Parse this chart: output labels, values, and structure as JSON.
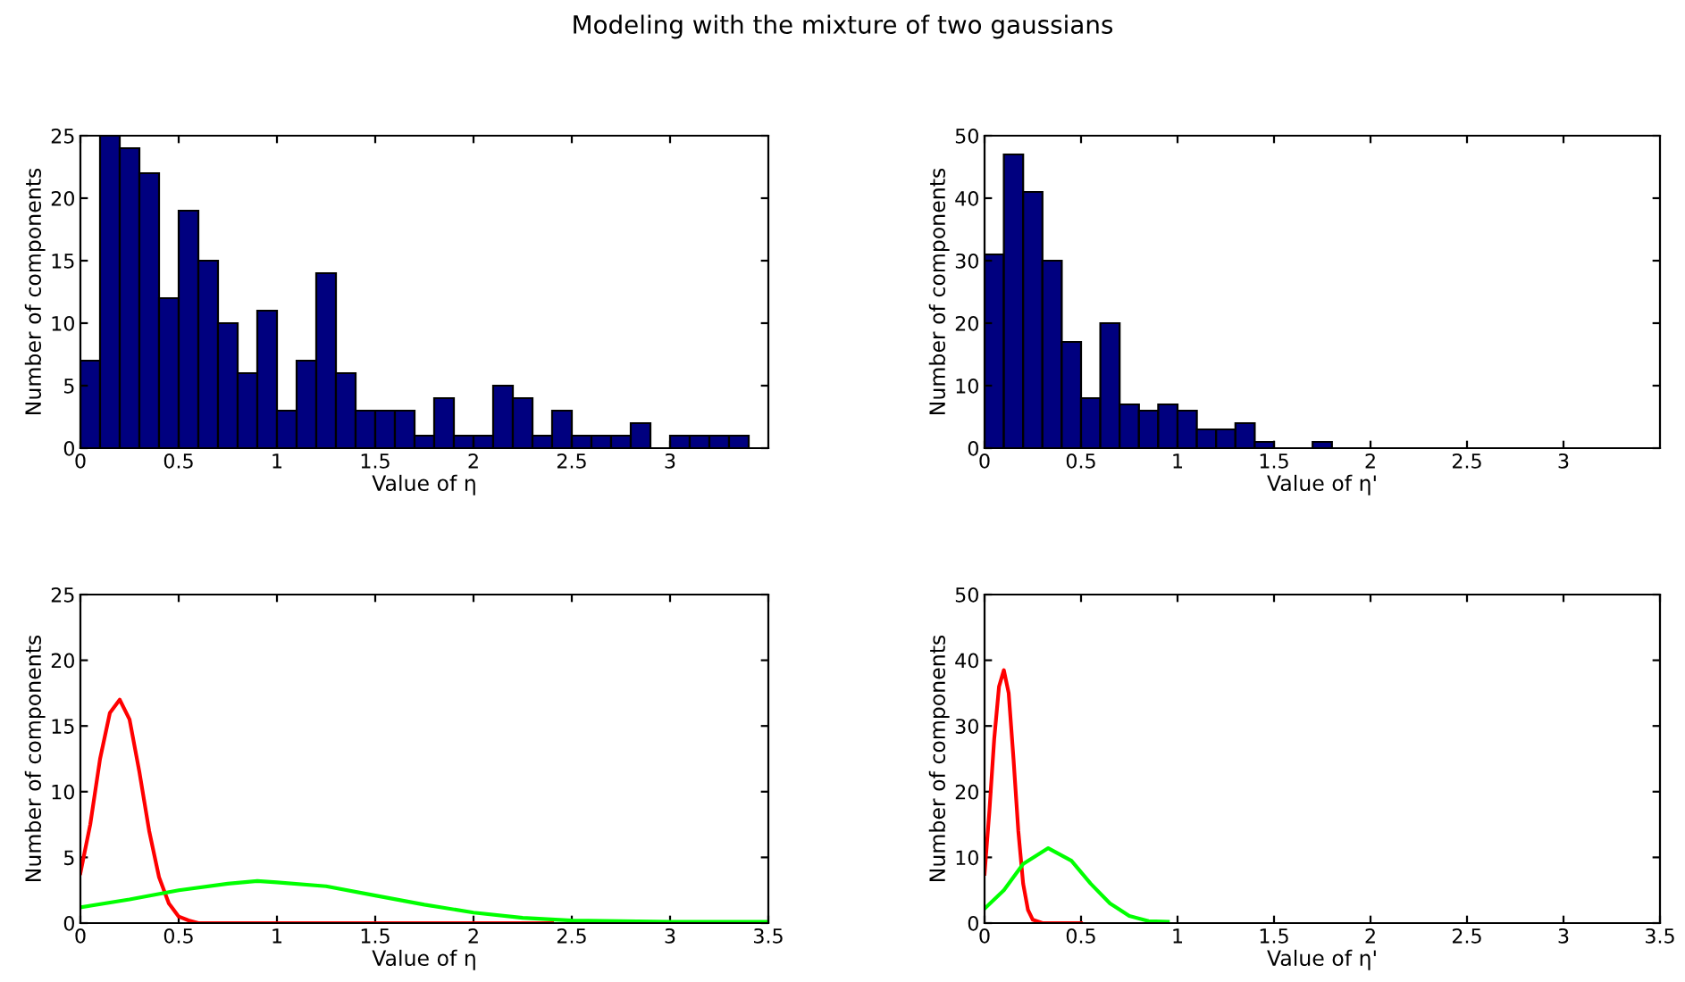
{
  "chart_data": [
    {
      "type": "histogram",
      "title": "Modeling with the mixture of two gaussians",
      "xlabel": "Value of η",
      "ylabel": "Number of components",
      "color": "#00007f",
      "bins": [
        0,
        0.1,
        0.2,
        0.3,
        0.4,
        0.5,
        0.6,
        0.7,
        0.8,
        0.9,
        1.0,
        1.1,
        1.2,
        1.3,
        1.4,
        1.5,
        1.6,
        1.7,
        1.8,
        1.9,
        2.0,
        2.1,
        2.2,
        2.3,
        2.4,
        2.5,
        2.6,
        2.7,
        2.8,
        2.9,
        3.0,
        3.1,
        3.2,
        3.3,
        3.4
      ],
      "values": [
        7,
        25,
        24,
        22,
        12,
        19,
        15,
        10,
        6,
        11,
        3,
        7,
        14,
        6,
        3,
        3,
        3,
        1,
        4,
        1,
        1,
        5,
        4,
        1,
        3,
        1,
        1,
        1,
        2,
        0,
        1,
        1,
        1,
        1
      ],
      "xlim": [
        0,
        3.5
      ],
      "xticks": [
        0,
        0.5,
        1,
        1.5,
        2,
        2.5,
        3
      ],
      "ylim": [
        0,
        25
      ],
      "yticks": [
        0,
        5,
        10,
        15,
        20,
        25
      ]
    },
    {
      "type": "histogram",
      "xlabel": "Value of η'",
      "ylabel": "Number of components",
      "color": "#00007f",
      "bins": [
        0,
        0.1,
        0.2,
        0.3,
        0.4,
        0.5,
        0.6,
        0.7,
        0.8,
        0.9,
        1.0,
        1.1,
        1.2,
        1.3,
        1.4,
        1.5,
        1.6,
        1.7,
        1.8
      ],
      "values": [
        31,
        47,
        41,
        30,
        17,
        8,
        20,
        7,
        6,
        7,
        6,
        3,
        3,
        4,
        1,
        0,
        0,
        1
      ],
      "xlim": [
        0,
        3.5
      ],
      "xticks": [
        0,
        0.5,
        1,
        1.5,
        2,
        2.5,
        3
      ],
      "ylim": [
        0,
        50
      ],
      "yticks": [
        0,
        10,
        20,
        30,
        40,
        50
      ]
    },
    {
      "type": "line",
      "xlabel": "Value of η",
      "ylabel": "Number of components",
      "xlim": [
        0,
        3.5
      ],
      "xticks": [
        0,
        0.5,
        1,
        1.5,
        2,
        2.5,
        3,
        3.5
      ],
      "ylim": [
        0,
        25
      ],
      "yticks": [
        0,
        5,
        10,
        15,
        20,
        25
      ],
      "series": [
        {
          "color": "#ff0000",
          "x": [
            0,
            0.05,
            0.1,
            0.15,
            0.2,
            0.25,
            0.3,
            0.35,
            0.4,
            0.45,
            0.5,
            0.55,
            0.6,
            0.8,
            1.0,
            1.2,
            1.6,
            2.0,
            2.4
          ],
          "values": [
            3.8,
            7.5,
            12.5,
            16,
            17,
            15.5,
            11.5,
            7,
            3.5,
            1.5,
            0.5,
            0.2,
            0,
            0,
            0,
            0,
            0,
            0,
            0
          ]
        },
        {
          "color": "#00ff00",
          "x": [
            0,
            0.25,
            0.5,
            0.75,
            0.9,
            1.0,
            1.25,
            1.5,
            1.75,
            2.0,
            2.25,
            2.5,
            3.0,
            3.5
          ],
          "values": [
            1.2,
            1.8,
            2.5,
            3.0,
            3.2,
            3.1,
            2.8,
            2.1,
            1.4,
            0.8,
            0.4,
            0.2,
            0.1,
            0.1
          ]
        }
      ]
    },
    {
      "type": "line",
      "xlabel": "Value of η'",
      "ylabel": "Number of components",
      "xlim": [
        0,
        3.5
      ],
      "xticks": [
        0,
        0.5,
        1,
        1.5,
        2,
        2.5,
        3,
        3.5
      ],
      "ylim": [
        0,
        50
      ],
      "yticks": [
        0,
        10,
        20,
        30,
        40,
        50
      ],
      "series": [
        {
          "color": "#ff0000",
          "x": [
            0,
            0.025,
            0.05,
            0.075,
            0.1,
            0.125,
            0.15,
            0.175,
            0.2,
            0.225,
            0.25,
            0.3,
            0.5
          ],
          "values": [
            7.5,
            17,
            28,
            36,
            38.5,
            35,
            25,
            14,
            6,
            2,
            0.5,
            0,
            0
          ]
        },
        {
          "color": "#00ff00",
          "x": [
            0,
            0.1,
            0.2,
            0.33,
            0.45,
            0.55,
            0.65,
            0.75,
            0.85,
            0.95
          ],
          "values": [
            2.2,
            5,
            9,
            11.4,
            9.5,
            6,
            3,
            1.1,
            0.3,
            0.2
          ]
        }
      ]
    }
  ]
}
